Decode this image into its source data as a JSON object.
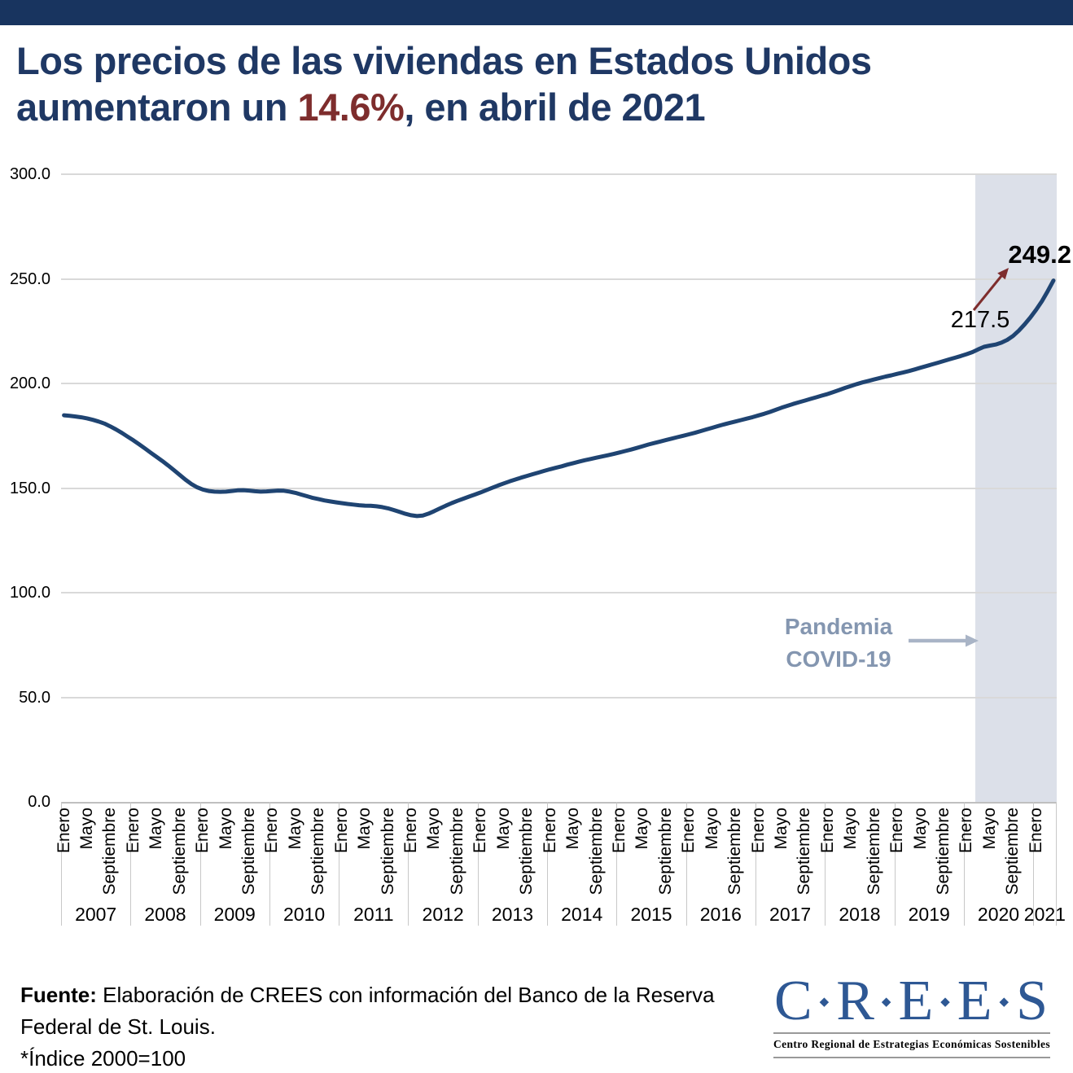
{
  "page": {
    "top_bar_color": "#18345F",
    "background": "#FFFFFF"
  },
  "title": {
    "line1": "Los precios de las viviendas en Estados Unidos",
    "line2_prefix": "aumentaron un ",
    "highlight": "14.6%",
    "line2_suffix": ", en abril de 2021",
    "color": "#1F3864",
    "highlight_color": "#7E2D2D"
  },
  "chart_data": {
    "type": "line",
    "title": "",
    "xlabel": "",
    "ylabel": "",
    "x_start": "2007-01",
    "x_end": "2021-04",
    "ylim": [
      0,
      300
    ],
    "yticks": [
      300,
      250,
      200,
      150,
      100,
      50,
      0
    ],
    "grid": "horizontal",
    "legend": "none",
    "line_color": "#1F4472",
    "years": [
      "2007",
      "2008",
      "2009",
      "2010",
      "2011",
      "2012",
      "2013",
      "2014",
      "2015",
      "2016",
      "2017",
      "2018",
      "2019",
      "2020",
      "2021"
    ],
    "month_ticks_per_year": [
      "Enero",
      "Mayo",
      "Septiembre"
    ],
    "last_year_month_ticks": [
      "Enero"
    ],
    "values": [
      184.8,
      184.5,
      184.2,
      183.8,
      183.3,
      182.6,
      181.8,
      180.8,
      179.5,
      178.0,
      176.4,
      174.6,
      172.8,
      170.9,
      168.9,
      166.9,
      164.9,
      162.9,
      160.8,
      158.6,
      156.3,
      154.0,
      152.0,
      150.4,
      149.3,
      148.6,
      148.3,
      148.2,
      148.3,
      148.6,
      148.9,
      149.0,
      148.8,
      148.5,
      148.3,
      148.4,
      148.6,
      148.8,
      148.7,
      148.3,
      147.7,
      146.9,
      146.1,
      145.3,
      144.7,
      144.1,
      143.6,
      143.2,
      142.8,
      142.4,
      142.1,
      141.8,
      141.6,
      141.5,
      141.3,
      140.9,
      140.3,
      139.5,
      138.6,
      137.7,
      137.0,
      136.6,
      136.9,
      137.8,
      139.0,
      140.3,
      141.6,
      142.8,
      143.9,
      144.9,
      145.9,
      146.9,
      147.9,
      149.0,
      150.1,
      151.2,
      152.2,
      153.2,
      154.1,
      155.0,
      155.8,
      156.6,
      157.4,
      158.2,
      159.0,
      159.7,
      160.4,
      161.2,
      161.9,
      162.6,
      163.3,
      163.9,
      164.5,
      165.1,
      165.7,
      166.3,
      167.0,
      167.7,
      168.4,
      169.2,
      170.0,
      170.8,
      171.5,
      172.2,
      172.9,
      173.6,
      174.3,
      175.0,
      175.7,
      176.4,
      177.2,
      178.0,
      178.8,
      179.6,
      180.4,
      181.1,
      181.8,
      182.5,
      183.2,
      183.9,
      184.7,
      185.5,
      186.4,
      187.4,
      188.4,
      189.3,
      190.2,
      191.0,
      191.8,
      192.6,
      193.4,
      194.2,
      195.0,
      195.9,
      196.9,
      197.9,
      198.8,
      199.7,
      200.5,
      201.2,
      201.9,
      202.6,
      203.3,
      203.9,
      204.6,
      205.2,
      205.9,
      206.7,
      207.5,
      208.3,
      209.1,
      209.9,
      210.7,
      211.5,
      212.3,
      213.1,
      214.0,
      215.0,
      216.3,
      217.5,
      218.1,
      218.6,
      219.5,
      220.8,
      222.7,
      225.2,
      228.2,
      231.5,
      235.2,
      239.3,
      244.1,
      249.2
    ],
    "annotations": [
      {
        "text": "249.2",
        "point": "2021-04",
        "bold": true,
        "color": "#000000"
      },
      {
        "text": "217.5",
        "point": "2020-04",
        "bold": false,
        "color": "#000000"
      }
    ],
    "shaded_region": {
      "from": "2020-03",
      "to": "2021-04",
      "color": "#DCE0E9",
      "label_line1": "Pandemia",
      "label_line2": "COVID-19",
      "label_color": "#8496B0",
      "arrow_color": "#A9B4C6"
    },
    "increase_arrow_color": "#7E2D2D"
  },
  "footer": {
    "source_bold": "Fuente:",
    "source_rest": " Elaboración de CREES con información del Banco de la Reserva",
    "source_line2": "Federal de St. Louis.",
    "note": "*Índice 2000=100"
  },
  "logo": {
    "letters": [
      "C",
      "R",
      "E",
      "E",
      "S"
    ],
    "tagline": "Centro Regional de Estrategias Económicas Sostenibles",
    "color": "#2E5894"
  }
}
